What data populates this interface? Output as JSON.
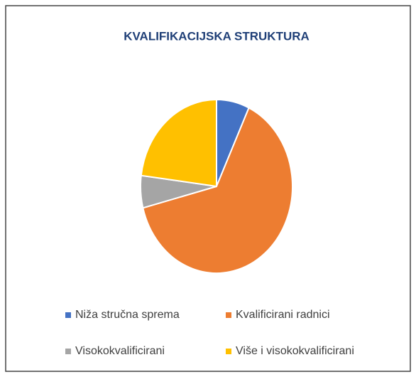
{
  "chart_data": {
    "type": "pie",
    "title": "KVALIFIKACIJSKA STRUKTURA",
    "categories": [
      "Niža stručna sprema",
      "Kvalificirani radnici",
      "Visokokvalificirani",
      "Više i visokokvalificirani"
    ],
    "values": [
      7,
      64,
      6,
      23
    ],
    "colors": [
      "#4472c4",
      "#ed7d31",
      "#a5a5a5",
      "#ffc000"
    ],
    "legend": "bottom"
  }
}
